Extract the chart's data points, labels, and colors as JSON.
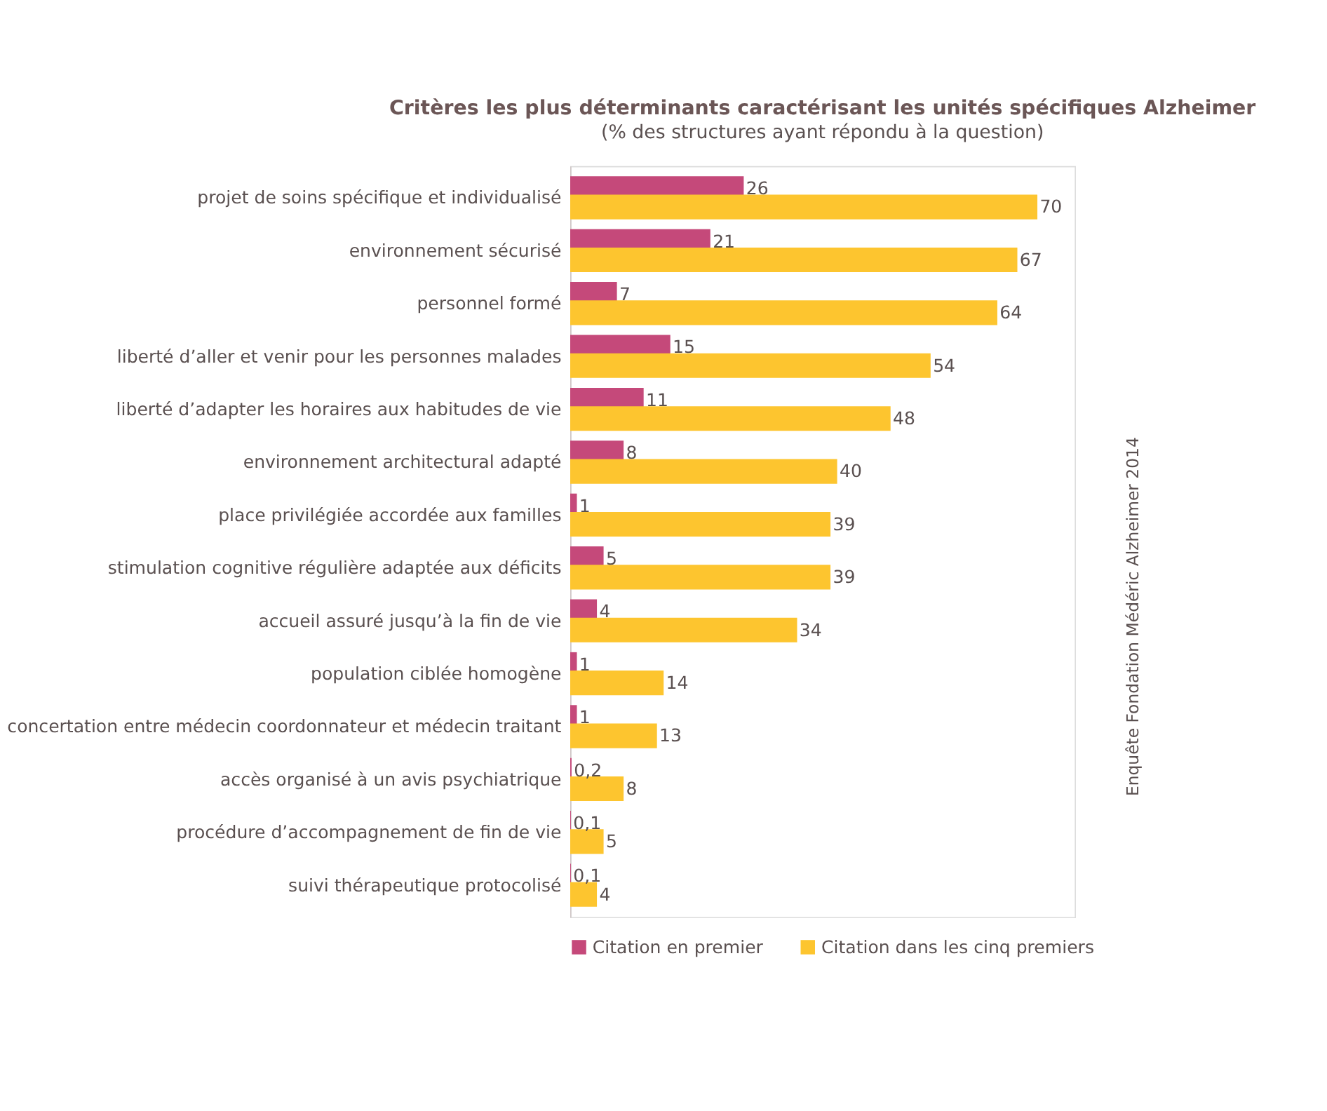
{
  "chart_data": {
    "type": "bar",
    "orientation": "horizontal",
    "title": "Critères les plus déterminants caractérisant les unités spécifiques Alzheimer",
    "subtitle": "(% des structures ayant répondu à la question)",
    "categories": [
      "projet de soins spécifique et individualisé",
      "environnement sécurisé",
      "personnel formé",
      "liberté d’aller et venir pour les personnes malades",
      "liberté d’adapter les horaires aux habitudes de vie",
      "environnement architectural adapté",
      "place privilégiée accordée aux familles",
      "stimulation cognitive régulière adaptée aux déficits",
      "accueil assuré jusqu’à la fin de vie",
      "population ciblée homogène",
      "concertation entre médecin coordonnateur et médecin traitant",
      "accès organisé à un avis psychiatrique",
      "procédure d’accompagnement de fin de vie",
      "suivi thérapeutique protocolisé"
    ],
    "series": [
      {
        "name": "Citation en premier",
        "color": "#c5497a",
        "values": [
          26,
          21,
          7,
          15,
          11,
          8,
          1,
          5,
          4,
          1,
          1,
          0.2,
          0.1,
          0.1
        ],
        "value_labels": [
          "26",
          "21",
          "7",
          "15",
          "11",
          "8",
          "1",
          "5",
          "4",
          "1",
          "1",
          "0,2",
          "0,1",
          "0,1"
        ]
      },
      {
        "name": "Citation dans les cinq premiers",
        "color": "#fdc52f",
        "values": [
          70,
          67,
          64,
          54,
          48,
          40,
          39,
          39,
          34,
          14,
          13,
          8,
          5,
          4
        ],
        "value_labels": [
          "70",
          "67",
          "64",
          "54",
          "48",
          "40",
          "39",
          "39",
          "34",
          "14",
          "13",
          "8",
          "5",
          "4"
        ]
      }
    ],
    "legend": "bottom",
    "annotations": [
      "Enquête Fondation Médéric Alzheimer 2014"
    ]
  }
}
